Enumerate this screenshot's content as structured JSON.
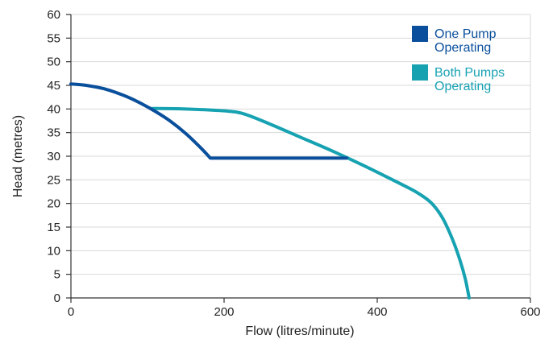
{
  "chart_data": {
    "type": "line",
    "title": "",
    "xlabel": "Flow (litres/minute)",
    "ylabel": "Head (metres)",
    "xlim": [
      0,
      600
    ],
    "ylim": [
      0,
      60
    ],
    "x_ticks": [
      "0",
      "200",
      "400",
      "600"
    ],
    "y_ticks": [
      "0",
      "5",
      "10",
      "15",
      "20",
      "25",
      "30",
      "35",
      "40",
      "45",
      "50",
      "55",
      "60"
    ],
    "grid": "horizontal",
    "legend_position": "top-right",
    "series": [
      {
        "name": "One Pump\nOperating",
        "legend_lines": [
          "One Pump",
          "Operating"
        ],
        "color": "#0a4f9c",
        "points": [
          [
            0,
            45.3
          ],
          [
            20,
            45.0
          ],
          [
            45,
            44.2
          ],
          [
            70,
            42.8
          ],
          [
            90,
            41.3
          ],
          [
            110,
            39.5
          ],
          [
            130,
            37.4
          ],
          [
            150,
            34.8
          ],
          [
            170,
            31.7
          ],
          [
            182,
            29.6
          ],
          [
            360,
            29.6
          ]
        ]
      },
      {
        "name": "Both Pumps\nOperating",
        "legend_lines": [
          "Both Pumps",
          "Operating"
        ],
        "color": "#17a2b2",
        "points": [
          [
            105,
            40.1
          ],
          [
            150,
            40.0
          ],
          [
            200,
            39.6
          ],
          [
            225,
            39.0
          ],
          [
            260,
            36.8
          ],
          [
            300,
            34.0
          ],
          [
            340,
            31.2
          ],
          [
            380,
            28.2
          ],
          [
            420,
            25.0
          ],
          [
            450,
            22.5
          ],
          [
            470,
            20.2
          ],
          [
            485,
            17.0
          ],
          [
            498,
            12.5
          ],
          [
            508,
            8.0
          ],
          [
            515,
            4.0
          ],
          [
            520,
            0
          ]
        ]
      }
    ]
  }
}
